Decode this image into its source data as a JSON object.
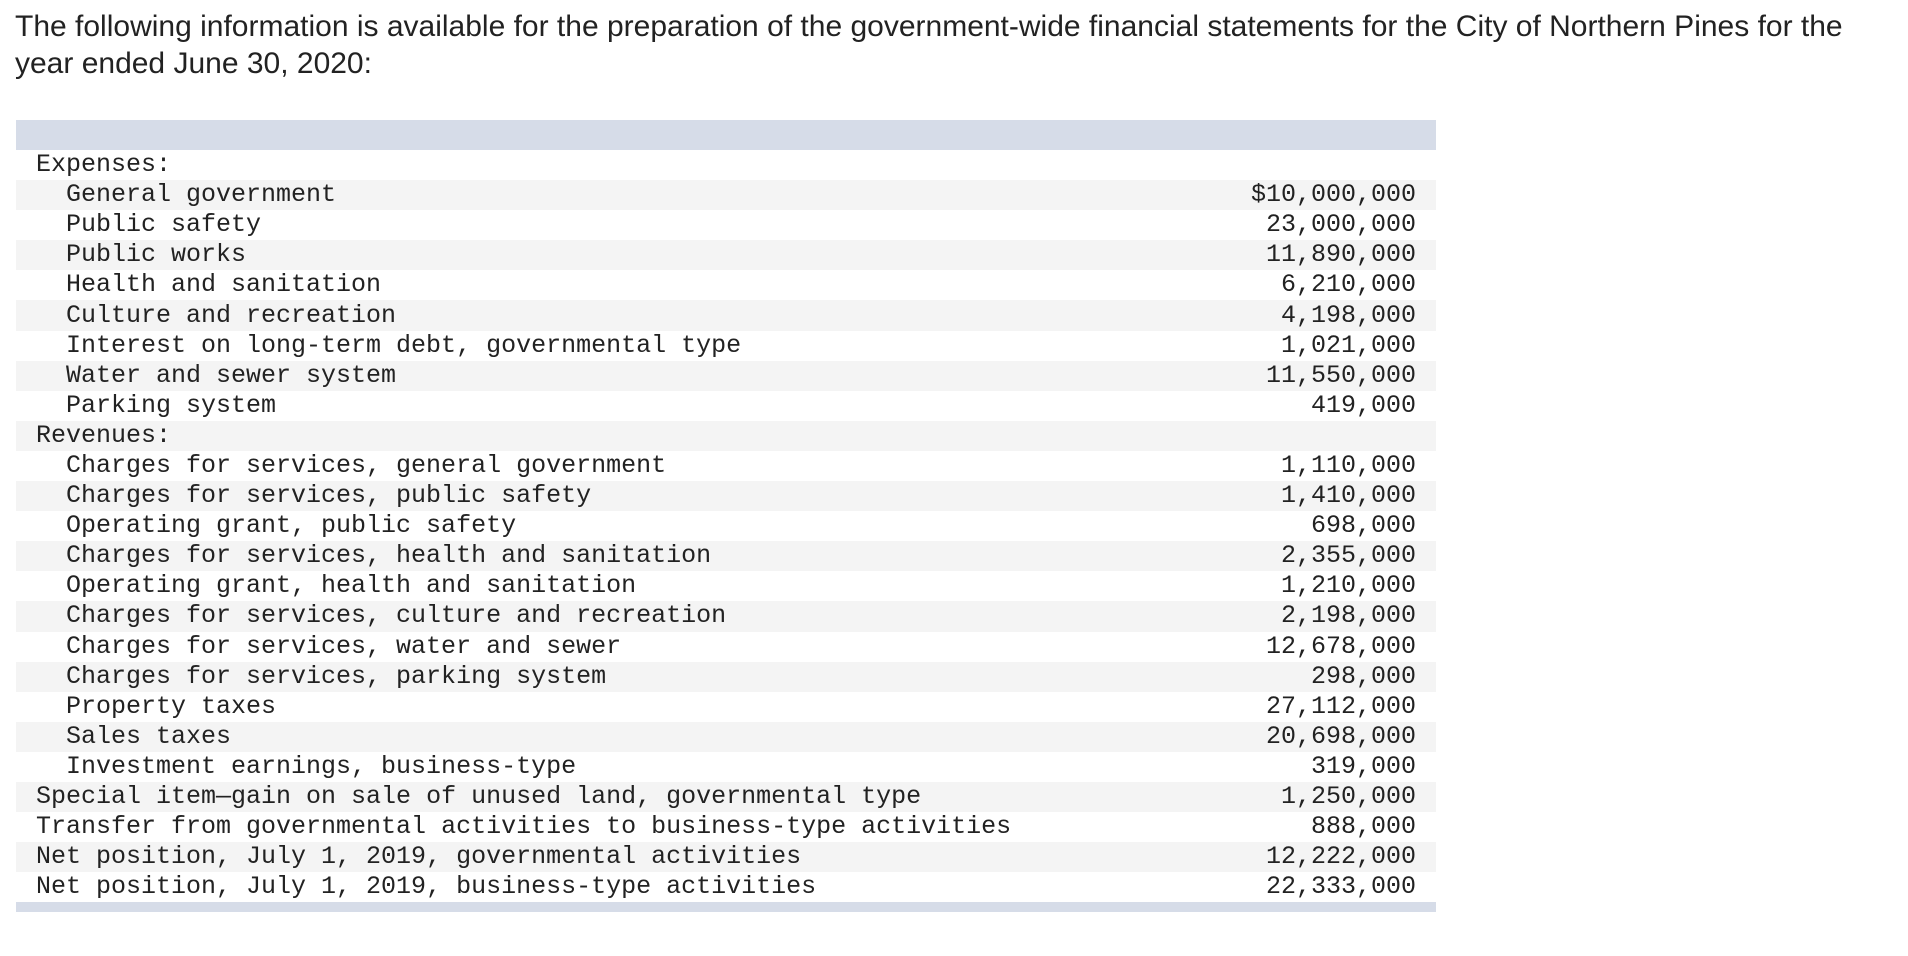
{
  "intro_text": "The following information is available for the preparation of the government-wide financial statements for the City of Northern Pines for the year ended June 30, 2020:",
  "rows": [
    {
      "label": "Expenses:",
      "amount": "",
      "indent": false
    },
    {
      "label": "General government",
      "amount": "$10,000,000",
      "indent": true
    },
    {
      "label": "Public safety",
      "amount": "23,000,000",
      "indent": true
    },
    {
      "label": "Public works",
      "amount": "11,890,000",
      "indent": true
    },
    {
      "label": "Health and sanitation",
      "amount": "6,210,000",
      "indent": true
    },
    {
      "label": "Culture and recreation",
      "amount": "4,198,000",
      "indent": true
    },
    {
      "label": "Interest on long-term debt, governmental type",
      "amount": "1,021,000",
      "indent": true
    },
    {
      "label": "Water and sewer system",
      "amount": "11,550,000",
      "indent": true
    },
    {
      "label": "Parking system",
      "amount": "419,000",
      "indent": true
    },
    {
      "label": "Revenues:",
      "amount": "",
      "indent": false
    },
    {
      "label": "Charges for services, general government",
      "amount": "1,110,000",
      "indent": true
    },
    {
      "label": "Charges for services, public safety",
      "amount": "1,410,000",
      "indent": true
    },
    {
      "label": "Operating grant, public safety",
      "amount": "698,000",
      "indent": true
    },
    {
      "label": "Charges for services, health and sanitation",
      "amount": "2,355,000",
      "indent": true
    },
    {
      "label": "Operating grant, health and sanitation",
      "amount": "1,210,000",
      "indent": true
    },
    {
      "label": "Charges for services, culture and recreation",
      "amount": "2,198,000",
      "indent": true
    },
    {
      "label": "Charges for services, water and sewer",
      "amount": "12,678,000",
      "indent": true
    },
    {
      "label": "Charges for services, parking system",
      "amount": "298,000",
      "indent": true
    },
    {
      "label": "Property taxes",
      "amount": "27,112,000",
      "indent": true
    },
    {
      "label": "Sales taxes",
      "amount": "20,698,000",
      "indent": true
    },
    {
      "label": "Investment earnings, business-type",
      "amount": "319,000",
      "indent": true
    },
    {
      "label": "Special item—gain on sale of unused land, governmental type",
      "amount": "1,250,000",
      "indent": false
    },
    {
      "label": "Transfer from governmental activities to business-type activities",
      "amount": "888,000",
      "indent": false
    },
    {
      "label": "Net position, July 1, 2019, governmental activities",
      "amount": "12,222,000",
      "indent": false
    },
    {
      "label": "Net position, July 1, 2019, business-type activities",
      "amount": "22,333,000",
      "indent": false
    }
  ]
}
